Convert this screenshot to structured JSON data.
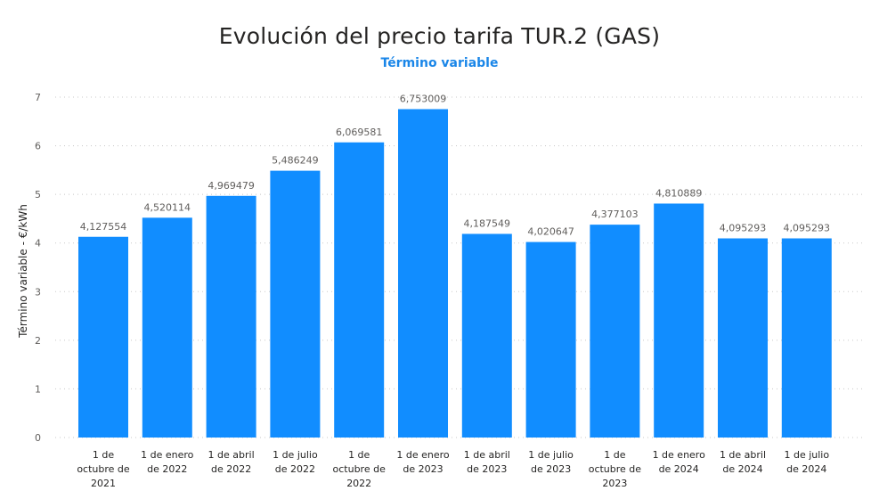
{
  "colors": {
    "bar": "#118DFF",
    "subtitle": "#1a86e8",
    "gridline": "#c8c8c8",
    "text": "#605e5c",
    "title": "#252423"
  },
  "chart_data": {
    "type": "bar",
    "title": "Evolución del precio tarifa TUR.2 (GAS)",
    "subtitle": "Término variable",
    "ylabel": "Término variable - €/kWh",
    "xlabel": "",
    "ylim": [
      0,
      7
    ],
    "yticks": [
      "0",
      "1",
      "2",
      "3",
      "4",
      "5",
      "6",
      "7"
    ],
    "grid": true,
    "categories": [
      [
        "1 de",
        "octubre de",
        "2021"
      ],
      [
        "1 de enero",
        "de 2022"
      ],
      [
        "1 de abril",
        "de 2022"
      ],
      [
        "1 de julio",
        "de 2022"
      ],
      [
        "1 de",
        "octubre de",
        "2022"
      ],
      [
        "1 de enero",
        "de 2023"
      ],
      [
        "1 de abril",
        "de 2023"
      ],
      [
        "1 de julio",
        "de 2023"
      ],
      [
        "1 de",
        "octubre de",
        "2023"
      ],
      [
        "1 de enero",
        "de 2024"
      ],
      [
        "1 de abril",
        "de 2024"
      ],
      [
        "1 de julio",
        "de 2024"
      ]
    ],
    "values": [
      4.127554,
      4.520114,
      4.969479,
      5.486249,
      6.069581,
      6.753009,
      4.187549,
      4.020647,
      4.377103,
      4.810889,
      4.095293,
      4.095293
    ],
    "data_labels": [
      "4,127554",
      "4,520114",
      "4,969479",
      "5,486249",
      "6,069581",
      "6,753009",
      "4,187549",
      "4,020647",
      "4,377103",
      "4,810889",
      "4,095293",
      "4,095293"
    ]
  }
}
